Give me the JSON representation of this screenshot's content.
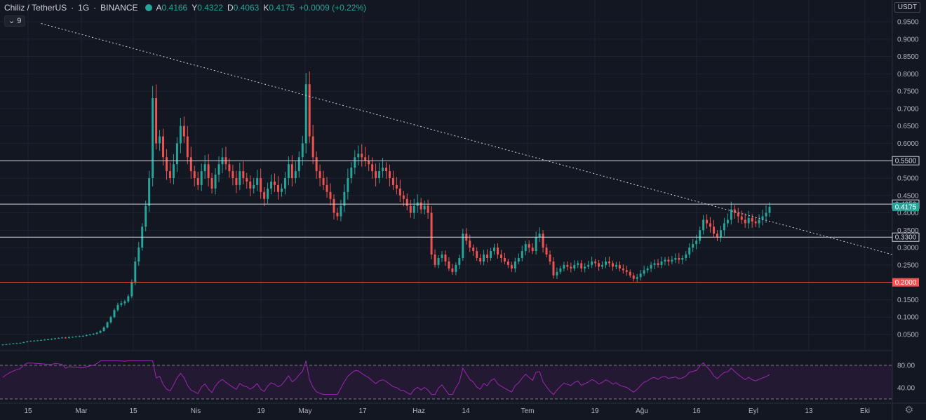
{
  "header": {
    "symbol": "Chiliz / TetherUS",
    "interval": "1G",
    "exchange": "BINANCE",
    "open_label": "A",
    "open": "0.4166",
    "high_label": "Y",
    "high": "0.4322",
    "low_label": "D",
    "low": "0.4063",
    "close_label": "K",
    "close": "0.4175",
    "change": "+0.0009 (+0.22%)"
  },
  "indicator_pill": "9",
  "currency": "USDT",
  "colors": {
    "background": "#131722",
    "up": "#26a69a",
    "down": "#ef5350",
    "rsi": "#9c27b0",
    "grid": "#1f2330",
    "text": "#b2b5be"
  },
  "chart_data": {
    "type": "candlestick",
    "y_ticks": [
      "0.9500",
      "0.9000",
      "0.8500",
      "0.8000",
      "0.7500",
      "0.7000",
      "0.6500",
      "0.6000",
      "0.5500",
      "0.5000",
      "0.4500",
      "0.4000",
      "0.3500",
      "0.3000",
      "0.2500",
      "0.2000",
      "0.1500",
      "0.1000",
      "0.0500"
    ],
    "x_ticks": [
      "15",
      "Mar",
      "15",
      "Nis",
      "19",
      "May",
      "17",
      "Haz",
      "14",
      "Tem",
      "19",
      "Ağu",
      "16",
      "Eyl",
      "13",
      "Eki"
    ],
    "horizontal_levels": [
      {
        "label": "0.5500",
        "value": 0.55,
        "color": "#d1d4dc"
      },
      {
        "label": "0.4250",
        "value": 0.425,
        "color": "#d1d4dc"
      },
      {
        "label": "0.3300",
        "value": 0.33,
        "color": "#d1d4dc"
      },
      {
        "label": "0.2000",
        "value": 0.2,
        "color": "#ef5350"
      }
    ],
    "last_price": {
      "label": "0.4175",
      "value": 0.4175
    },
    "trendline": {
      "from": [
        11,
        0.945
      ],
      "to": [
        215,
        0.28
      ]
    },
    "ohlc_closes": [
      0.021,
      0.022,
      0.023,
      0.024,
      0.025,
      0.026,
      0.028,
      0.03,
      0.031,
      0.032,
      0.033,
      0.034,
      0.035,
      0.036,
      0.037,
      0.039,
      0.04,
      0.041,
      0.04,
      0.042,
      0.043,
      0.044,
      0.045,
      0.046,
      0.048,
      0.05,
      0.052,
      0.055,
      0.06,
      0.07,
      0.085,
      0.1,
      0.12,
      0.135,
      0.14,
      0.145,
      0.16,
      0.2,
      0.26,
      0.3,
      0.36,
      0.42,
      0.5,
      0.73,
      0.6,
      0.62,
      0.56,
      0.52,
      0.5,
      0.54,
      0.6,
      0.65,
      0.62,
      0.56,
      0.52,
      0.5,
      0.48,
      0.52,
      0.54,
      0.5,
      0.47,
      0.51,
      0.54,
      0.56,
      0.54,
      0.52,
      0.5,
      0.48,
      0.52,
      0.5,
      0.49,
      0.47,
      0.48,
      0.5,
      0.46,
      0.44,
      0.47,
      0.49,
      0.48,
      0.46,
      0.47,
      0.5,
      0.54,
      0.5,
      0.52,
      0.56,
      0.6,
      0.77,
      0.62,
      0.56,
      0.52,
      0.5,
      0.48,
      0.46,
      0.44,
      0.4,
      0.39,
      0.42,
      0.46,
      0.5,
      0.53,
      0.56,
      0.57,
      0.56,
      0.55,
      0.54,
      0.52,
      0.5,
      0.52,
      0.53,
      0.52,
      0.5,
      0.48,
      0.47,
      0.45,
      0.44,
      0.42,
      0.4,
      0.42,
      0.43,
      0.41,
      0.42,
      0.4,
      0.28,
      0.25,
      0.27,
      0.28,
      0.26,
      0.24,
      0.23,
      0.25,
      0.27,
      0.34,
      0.32,
      0.3,
      0.29,
      0.27,
      0.26,
      0.28,
      0.27,
      0.29,
      0.3,
      0.28,
      0.27,
      0.26,
      0.25,
      0.24,
      0.26,
      0.27,
      0.29,
      0.31,
      0.3,
      0.29,
      0.33,
      0.34,
      0.3,
      0.28,
      0.26,
      0.22,
      0.23,
      0.24,
      0.25,
      0.245,
      0.24,
      0.25,
      0.255,
      0.24,
      0.245,
      0.25,
      0.26,
      0.255,
      0.245,
      0.25,
      0.26,
      0.255,
      0.245,
      0.25,
      0.24,
      0.235,
      0.23,
      0.22,
      0.21,
      0.215,
      0.225,
      0.235,
      0.24,
      0.25,
      0.255,
      0.25,
      0.26,
      0.265,
      0.26,
      0.265,
      0.27,
      0.265,
      0.27,
      0.28,
      0.3,
      0.31,
      0.32,
      0.35,
      0.38,
      0.37,
      0.36,
      0.34,
      0.33,
      0.35,
      0.37,
      0.38,
      0.41,
      0.4,
      0.39,
      0.38,
      0.37,
      0.385,
      0.375,
      0.37,
      0.38,
      0.39,
      0.4,
      0.4175
    ]
  },
  "rsi": {
    "ticks": [
      "80.00",
      "40.00"
    ],
    "upper": 80,
    "lower": 40
  }
}
